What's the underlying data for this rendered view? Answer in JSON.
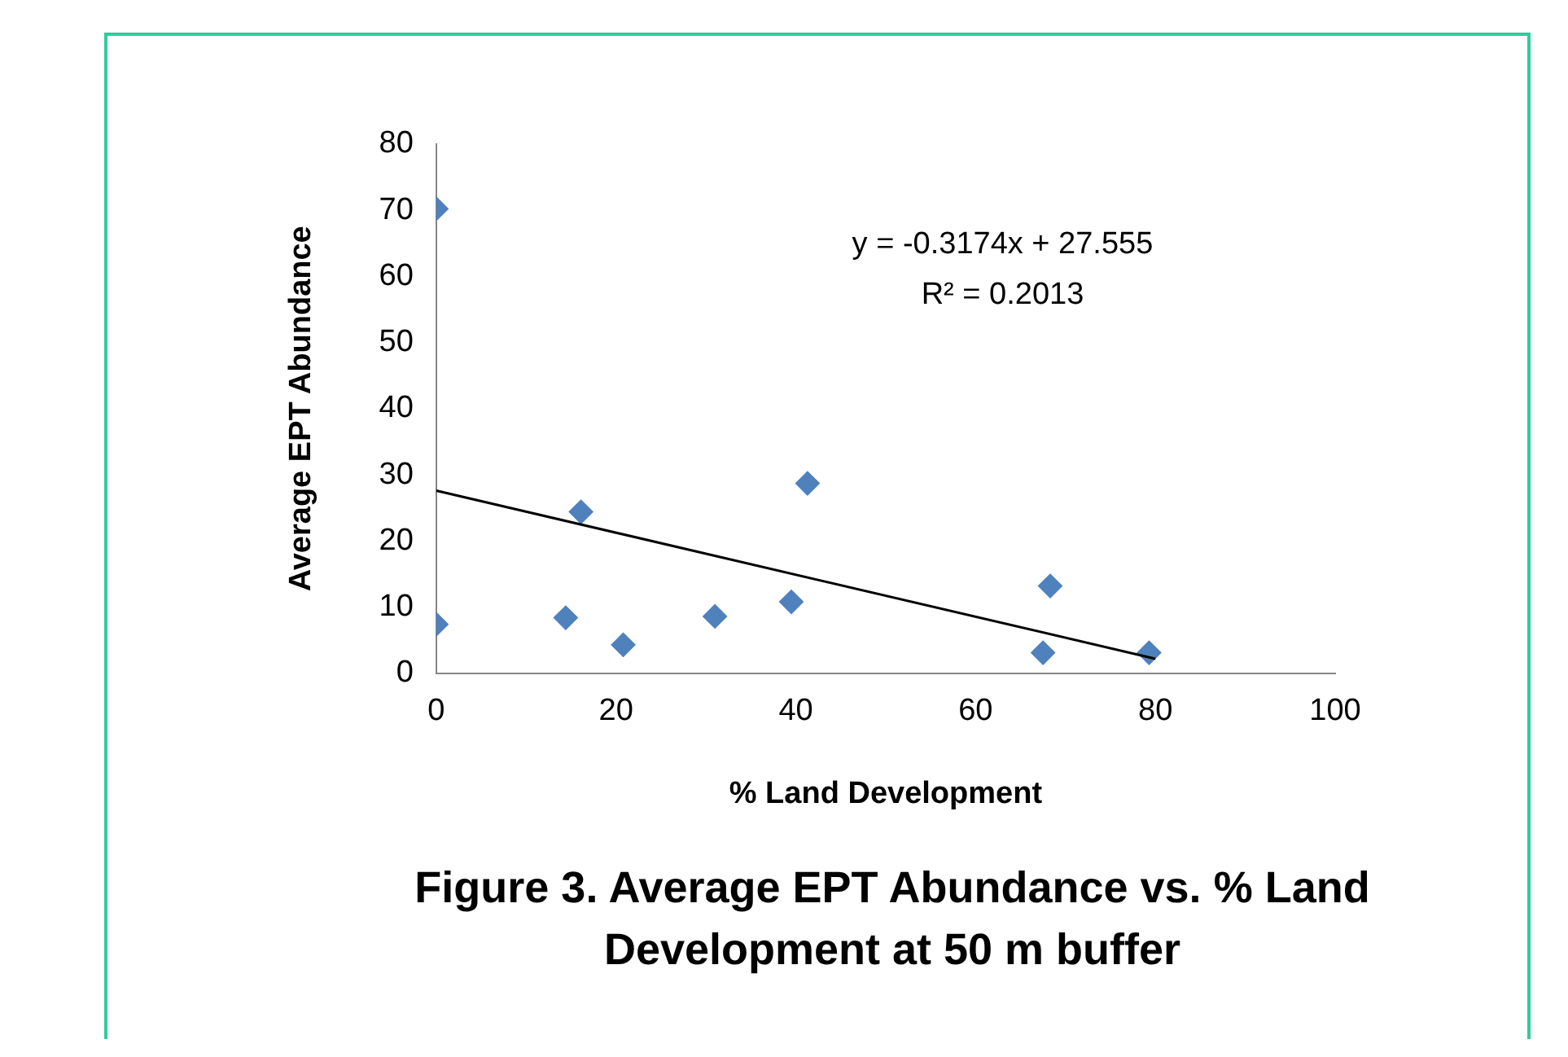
{
  "chart_data": {
    "type": "scatter",
    "title": "Figure 3. Average EPT Abundance vs. % Land Development at 50 m buffer",
    "xlabel": "% Land Development",
    "ylabel": "Average EPT Abundance",
    "x": [
      0,
      0,
      14.4,
      16.1,
      20.8,
      31,
      39.5,
      41.3,
      67.5,
      68.3,
      79.3
    ],
    "series": [
      {
        "color": "#4f81bd",
        "values": [
          70.2,
          7.4,
          8.4,
          24.4,
          4.3,
          8.6,
          10.8,
          28.7,
          3.1,
          13.2,
          3.1
        ],
        "marker": "diamond"
      },
      {
        "type": "line",
        "color": "#000000",
        "x": [
          0,
          80
        ],
        "values": [
          27.6,
          2.2
        ],
        "marker": "none"
      }
    ],
    "xlim": [
      0,
      100
    ],
    "xticks": [
      0,
      20,
      40,
      60,
      80,
      100
    ],
    "ylim": [
      0,
      80
    ],
    "yticks": [
      0,
      10,
      20,
      30,
      40,
      50,
      60,
      70,
      80
    ],
    "grid": false,
    "legend": false,
    "annotations": [
      "y = -0.3174x + 27.555",
      "R² = 0.2013"
    ]
  }
}
